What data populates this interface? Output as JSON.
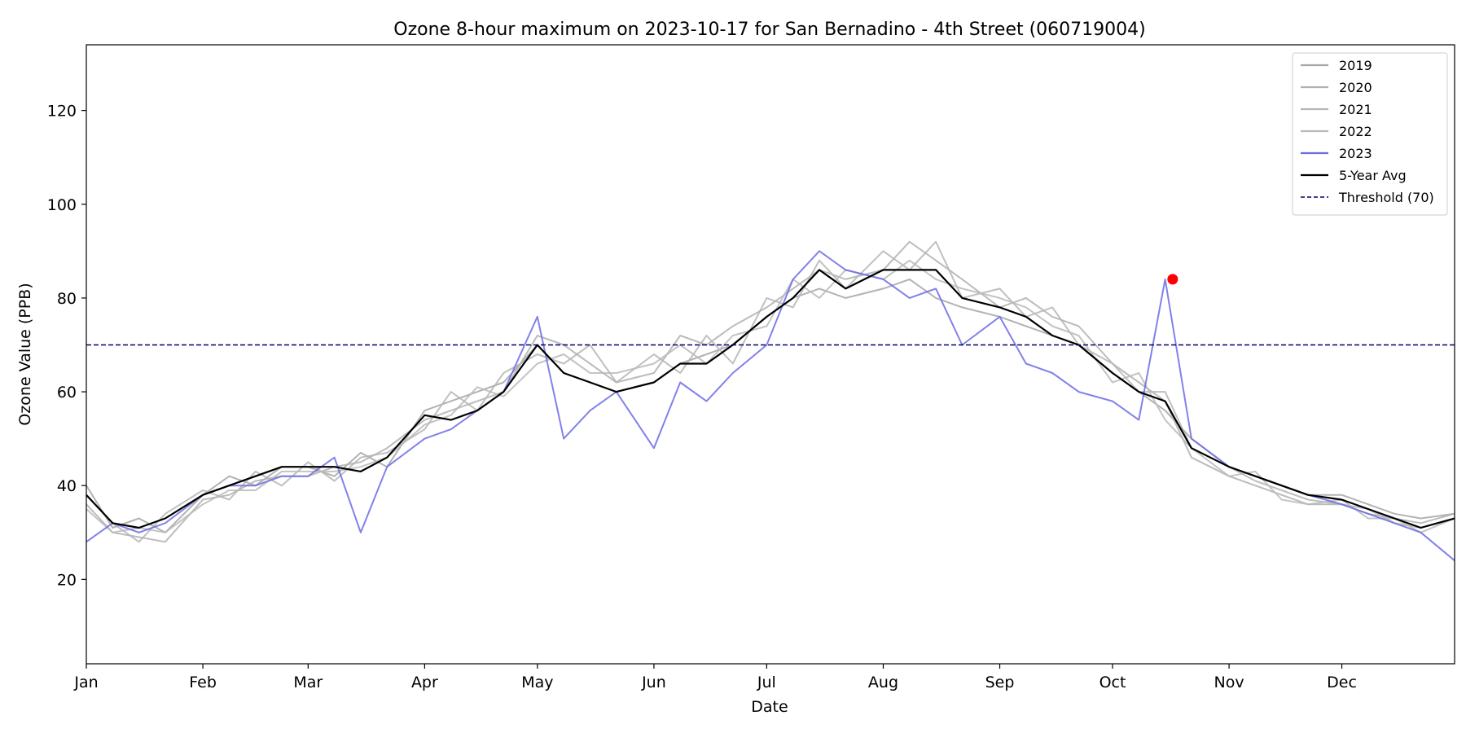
{
  "chart_data": {
    "type": "line",
    "title": "Ozone 8-hour maximum on 2023-10-17 for San Bernadino - 4th Street (060719004)",
    "xlabel": "Date",
    "ylabel": "Ozone Value (PPB)",
    "xlim": [
      "2023-01-01",
      "2023-12-31"
    ],
    "ylim": [
      2,
      134
    ],
    "x_ticks": [
      "Jan",
      "Feb",
      "Mar",
      "Apr",
      "May",
      "Jun",
      "Jul",
      "Aug",
      "Sep",
      "Oct",
      "Nov",
      "Dec"
    ],
    "y_ticks": [
      20,
      40,
      60,
      80,
      100,
      120
    ],
    "grid": false,
    "legend_position": "top-right",
    "x_keypoints": [
      "2023-01-01",
      "2023-01-08",
      "2023-01-15",
      "2023-01-22",
      "2023-02-01",
      "2023-02-08",
      "2023-02-15",
      "2023-02-22",
      "2023-03-01",
      "2023-03-08",
      "2023-03-15",
      "2023-03-22",
      "2023-04-01",
      "2023-04-08",
      "2023-04-15",
      "2023-04-22",
      "2023-05-01",
      "2023-05-08",
      "2023-05-15",
      "2023-05-22",
      "2023-06-01",
      "2023-06-08",
      "2023-06-15",
      "2023-06-22",
      "2023-07-01",
      "2023-07-08",
      "2023-07-15",
      "2023-07-22",
      "2023-08-01",
      "2023-08-08",
      "2023-08-15",
      "2023-08-22",
      "2023-09-01",
      "2023-09-08",
      "2023-09-15",
      "2023-09-22",
      "2023-10-01",
      "2023-10-08",
      "2023-10-15",
      "2023-10-22",
      "2023-11-01",
      "2023-11-08",
      "2023-11-15",
      "2023-11-22",
      "2023-12-01",
      "2023-12-08",
      "2023-12-15",
      "2023-12-22",
      "2023-12-31"
    ],
    "series": [
      {
        "name": "2019",
        "color": "#a6a6a6",
        "values": [
          40,
          31,
          33,
          30,
          38,
          42,
          40,
          44,
          44,
          42,
          47,
          44,
          56,
          58,
          60,
          62,
          70,
          64,
          62,
          60,
          62,
          66,
          68,
          70,
          76,
          80,
          82,
          80,
          82,
          84,
          80,
          78,
          76,
          74,
          72,
          70,
          64,
          60,
          56,
          50,
          44,
          42,
          40,
          38,
          38,
          36,
          34,
          33,
          34
        ]
      },
      {
        "name": "2020",
        "color": "#b0b0b0",
        "values": [
          36,
          30,
          29,
          28,
          37,
          38,
          41,
          42,
          42,
          44,
          45,
          48,
          54,
          56,
          58,
          60,
          72,
          70,
          66,
          62,
          64,
          72,
          70,
          74,
          78,
          82,
          86,
          84,
          86,
          92,
          88,
          84,
          78,
          80,
          76,
          74,
          66,
          62,
          58,
          46,
          42,
          40,
          38,
          36,
          36,
          34,
          33,
          32,
          34
        ]
      },
      {
        "name": "2021",
        "color": "#b5b5b5",
        "values": [
          38,
          32,
          28,
          34,
          39,
          37,
          43,
          40,
          45,
          41,
          46,
          47,
          52,
          60,
          56,
          64,
          68,
          66,
          70,
          62,
          68,
          64,
          72,
          66,
          80,
          78,
          88,
          82,
          90,
          86,
          92,
          80,
          82,
          76,
          78,
          70,
          66,
          60,
          60,
          48,
          44,
          41,
          39,
          37,
          36,
          35,
          32,
          31,
          33
        ]
      },
      {
        "name": "2022",
        "color": "#bababa",
        "values": [
          35,
          30,
          31,
          30,
          36,
          39,
          39,
          43,
          43,
          43,
          44,
          46,
          53,
          55,
          61,
          59,
          66,
          68,
          64,
          64,
          66,
          70,
          66,
          72,
          74,
          84,
          80,
          86,
          84,
          88,
          84,
          82,
          80,
          78,
          74,
          72,
          62,
          64,
          54,
          48,
          42,
          43,
          37,
          36,
          37,
          33,
          33,
          30,
          33
        ]
      },
      {
        "name": "2023",
        "color": "#6b6be6",
        "values": [
          28,
          32,
          30,
          32,
          38,
          40,
          40,
          42,
          42,
          46,
          30,
          44,
          50,
          52,
          56,
          60,
          76,
          50,
          56,
          60,
          48,
          62,
          58,
          64,
          70,
          84,
          90,
          86,
          84,
          80,
          82,
          70,
          76,
          66,
          64,
          60,
          58,
          54,
          84,
          50,
          44,
          42,
          40,
          38,
          36,
          34,
          32,
          30,
          24
        ]
      },
      {
        "name": "5-Year Avg",
        "color": "#000000",
        "values": [
          38,
          32,
          31,
          33,
          38,
          40,
          42,
          44,
          44,
          44,
          43,
          46,
          55,
          54,
          56,
          60,
          70,
          64,
          62,
          60,
          62,
          66,
          66,
          70,
          76,
          80,
          86,
          82,
          86,
          86,
          86,
          80,
          78,
          76,
          72,
          70,
          64,
          60,
          58,
          48,
          44,
          42,
          40,
          38,
          37,
          35,
          33,
          31,
          33
        ]
      }
    ],
    "highlight": {
      "date": "2023-10-17",
      "value": 84,
      "color": "#ff0000"
    },
    "threshold": {
      "name": "Threshold (70)",
      "value": 70,
      "color": "#000066"
    }
  }
}
